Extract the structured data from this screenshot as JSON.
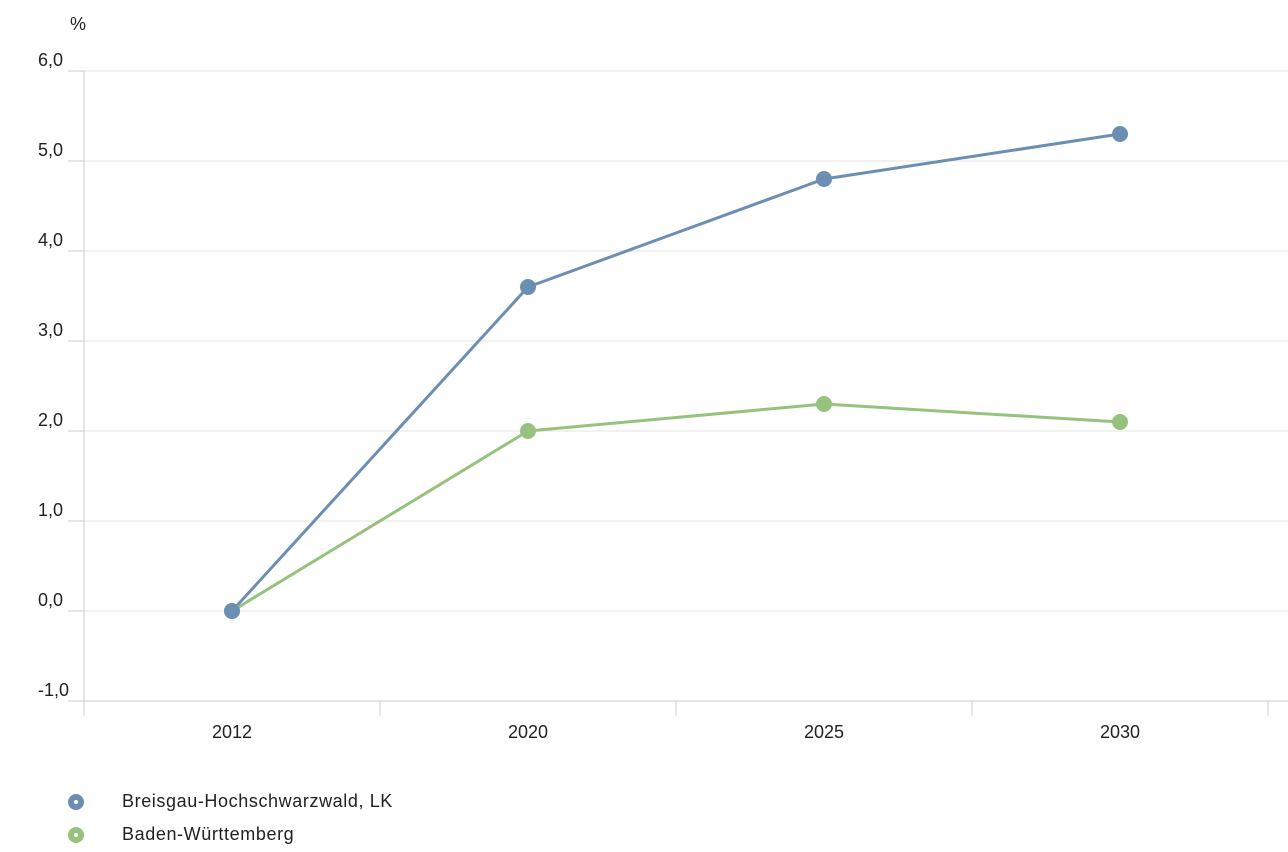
{
  "chart_data": {
    "type": "line",
    "ylabel": "%",
    "x": [
      "2012",
      "2020",
      "2025",
      "2030"
    ],
    "ylim": [
      -1.0,
      6.0
    ],
    "yticks": [
      "-1,0",
      "0,0",
      "1,0",
      "2,0",
      "3,0",
      "4,0",
      "5,0",
      "6,0"
    ],
    "grid": true,
    "legend_position": "bottom-left",
    "series": [
      {
        "name": "Breisgau-Hochschwarzwald, LK",
        "color": "#6d8eb3",
        "values": [
          0.0,
          3.6,
          4.8,
          5.3
        ]
      },
      {
        "name": "Baden-Württemberg",
        "color": "#97c27e",
        "values": [
          0.0,
          2.0,
          2.3,
          2.1
        ]
      }
    ]
  }
}
